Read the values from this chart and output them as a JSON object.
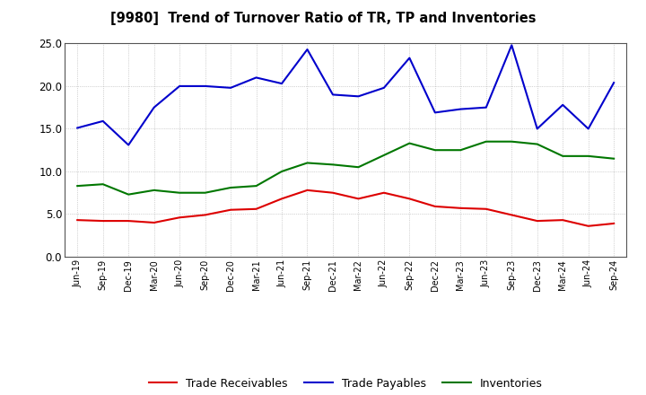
{
  "title": "[9980]  Trend of Turnover Ratio of TR, TP and Inventories",
  "labels": [
    "Jun-19",
    "Sep-19",
    "Dec-19",
    "Mar-20",
    "Jun-20",
    "Sep-20",
    "Dec-20",
    "Mar-21",
    "Jun-21",
    "Sep-21",
    "Dec-21",
    "Mar-22",
    "Jun-22",
    "Sep-22",
    "Dec-22",
    "Mar-23",
    "Jun-23",
    "Sep-23",
    "Dec-23",
    "Mar-24",
    "Jun-24",
    "Sep-24"
  ],
  "trade_receivables": [
    4.3,
    4.2,
    4.2,
    4.0,
    4.6,
    4.9,
    5.5,
    5.6,
    6.8,
    7.8,
    7.5,
    6.8,
    7.5,
    6.8,
    5.9,
    5.7,
    5.6,
    4.9,
    4.2,
    4.3,
    3.6,
    3.9
  ],
  "trade_payables": [
    15.1,
    15.9,
    13.1,
    17.5,
    20.0,
    20.0,
    19.8,
    21.0,
    20.3,
    24.3,
    19.0,
    18.8,
    19.8,
    23.3,
    16.9,
    17.3,
    17.5,
    24.8,
    15.0,
    17.8,
    15.0,
    20.4
  ],
  "inventories": [
    8.3,
    8.5,
    7.3,
    7.8,
    7.5,
    7.5,
    8.1,
    8.3,
    10.0,
    11.0,
    10.8,
    10.5,
    11.9,
    13.3,
    12.5,
    12.5,
    13.5,
    13.5,
    13.2,
    11.8,
    11.8,
    11.5
  ],
  "tr_color": "#dd0000",
  "tp_color": "#0000cc",
  "inv_color": "#007700",
  "ylim": [
    0,
    25.0
  ],
  "yticks": [
    0.0,
    5.0,
    10.0,
    15.0,
    20.0,
    25.0
  ],
  "grid_color": "#999999",
  "bg_color": "#ffffff",
  "legend_labels": [
    "Trade Receivables",
    "Trade Payables",
    "Inventories"
  ]
}
